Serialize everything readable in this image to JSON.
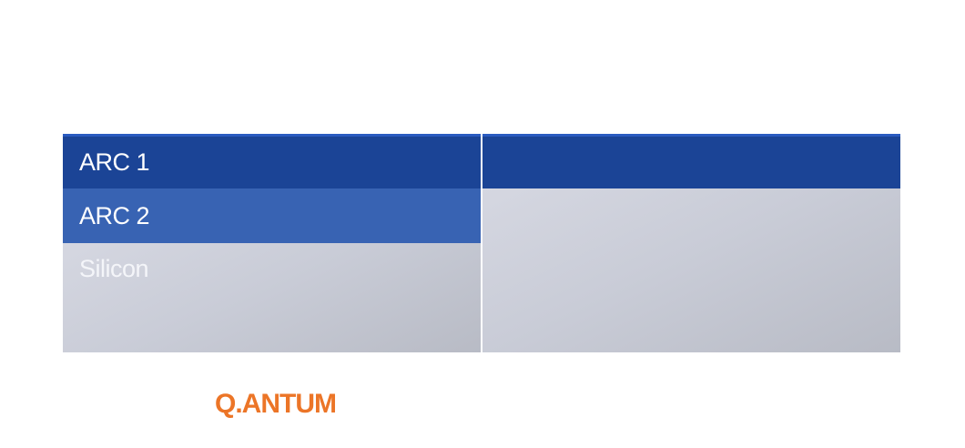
{
  "layers": {
    "arc1": "ARC 1",
    "arc2": "ARC 2",
    "silicon": "Silicon"
  },
  "brand": {
    "name": "Q.ANTUM"
  },
  "colors": {
    "arc1": "#1b4496",
    "arc2": "#3863b3",
    "silicon": "#c9ccd7",
    "brand": "#ec7527",
    "divider": "#ffffff"
  }
}
